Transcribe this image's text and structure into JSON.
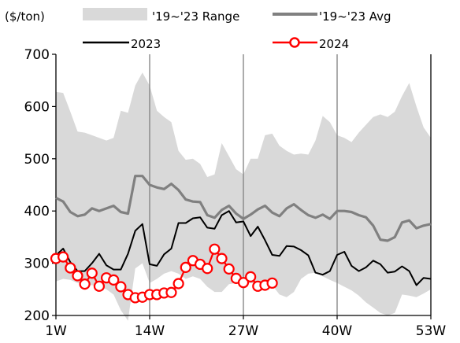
{
  "chart_data": {
    "type": "line",
    "unit_label": "($/ton)",
    "xlabel": "",
    "ylabel": "",
    "xlim": [
      1,
      53
    ],
    "ylim": [
      200,
      700
    ],
    "x_tick_values": [
      1,
      14,
      27,
      40,
      53
    ],
    "x_tick_labels": [
      "1W",
      "14W",
      "27W",
      "40W",
      "53W"
    ],
    "y_ticks": [
      200,
      300,
      400,
      500,
      600,
      700
    ],
    "y_tick_labels": [
      "200",
      "300",
      "400",
      "500",
      "600",
      "700"
    ],
    "vertical_gridlines_at": [
      14,
      27,
      40
    ],
    "legend_position": "top",
    "legend": [
      {
        "label": "'19~'23 Range",
        "kind": "band",
        "color": "#d9d9d9"
      },
      {
        "label": "'19~'23 Avg",
        "kind": "line",
        "color": "#808080"
      },
      {
        "label": "2023",
        "kind": "line",
        "color": "#000000"
      },
      {
        "label": "2024",
        "kind": "line-marker",
        "color": "#ff0000"
      }
    ],
    "x": [
      1,
      2,
      3,
      4,
      5,
      6,
      7,
      8,
      9,
      10,
      11,
      12,
      13,
      14,
      15,
      16,
      17,
      18,
      19,
      20,
      21,
      22,
      23,
      24,
      25,
      26,
      27,
      28,
      29,
      30,
      31,
      32,
      33,
      34,
      35,
      36,
      37,
      38,
      39,
      40,
      41,
      42,
      43,
      44,
      45,
      46,
      47,
      48,
      49,
      50,
      51,
      52,
      53
    ],
    "series": [
      {
        "name": "'19~'23 Range",
        "kind": "band",
        "color": "#d9d9d9",
        "upper": [
          628,
          626,
          590,
          552,
          550,
          545,
          540,
          535,
          540,
          592,
          588,
          640,
          665,
          640,
          592,
          580,
          570,
          515,
          498,
          500,
          490,
          465,
          470,
          530,
          505,
          480,
          470,
          500,
          500,
          545,
          548,
          525,
          515,
          508,
          510,
          508,
          535,
          582,
          570,
          545,
          540,
          532,
          550,
          565,
          580,
          585,
          580,
          590,
          620,
          645,
          600,
          560,
          540
        ],
        "lower": [
          265,
          270,
          268,
          262,
          260,
          258,
          255,
          250,
          240,
          210,
          190,
          290,
          300,
          262,
          270,
          280,
          285,
          280,
          270,
          275,
          270,
          255,
          245,
          245,
          260,
          262,
          258,
          262,
          260,
          255,
          258,
          240,
          235,
          245,
          270,
          280,
          282,
          275,
          268,
          262,
          255,
          248,
          238,
          225,
          215,
          205,
          200,
          205,
          240,
          238,
          235,
          242,
          250
        ]
      },
      {
        "name": "'19~'23 Avg",
        "kind": "line",
        "color": "#808080",
        "values": [
          425,
          418,
          398,
          390,
          393,
          405,
          400,
          405,
          410,
          398,
          395,
          467,
          467,
          450,
          445,
          442,
          452,
          440,
          422,
          418,
          417,
          392,
          387,
          402,
          410,
          395,
          385,
          393,
          403,
          410,
          397,
          390,
          405,
          413,
          402,
          392,
          387,
          393,
          385,
          400,
          400,
          398,
          392,
          388,
          372,
          345,
          343,
          350,
          378,
          382,
          367,
          372,
          375
        ]
      },
      {
        "name": "2023",
        "kind": "line",
        "color": "#000000",
        "values": [
          315,
          328,
          302,
          285,
          285,
          300,
          318,
          296,
          288,
          288,
          318,
          362,
          375,
          298,
          295,
          317,
          328,
          377,
          377,
          386,
          388,
          368,
          366,
          392,
          400,
          378,
          380,
          352,
          370,
          344,
          316,
          314,
          333,
          332,
          325,
          315,
          282,
          278,
          285,
          316,
          322,
          295,
          285,
          292,
          305,
          298,
          282,
          284,
          294,
          285,
          258,
          272,
          270
        ]
      },
      {
        "name": "2024",
        "kind": "line-marker",
        "color": "#ff0000",
        "values": [
          309,
          312,
          291,
          276,
          260,
          281,
          256,
          272,
          268,
          255,
          240,
          234,
          235,
          240,
          240,
          243,
          244,
          261,
          292,
          305,
          298,
          290,
          327,
          309,
          289,
          271,
          263,
          274,
          256,
          258,
          262,
          null,
          null,
          null,
          null,
          null,
          null,
          null,
          null,
          null,
          null,
          null,
          null,
          null,
          null,
          null,
          null,
          null,
          null,
          null,
          null,
          null,
          null
        ]
      }
    ]
  }
}
